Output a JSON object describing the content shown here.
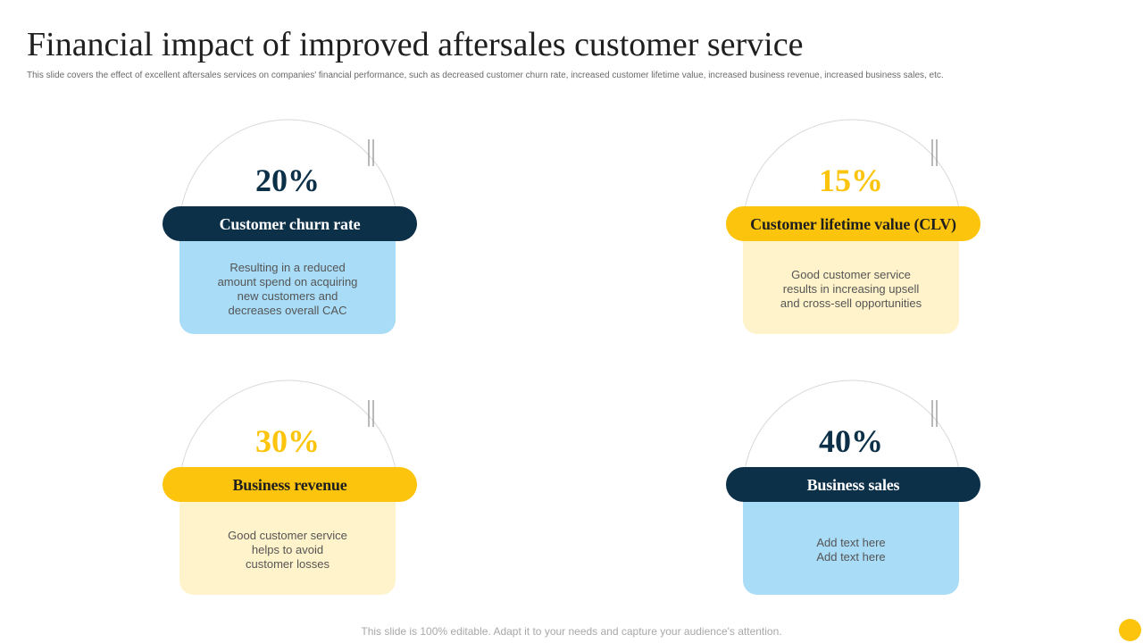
{
  "slide": {
    "title": "Financial impact of improved aftersales customer service",
    "subtitle": "This slide covers the effect of excellent aftersales services on companies' financial performance, such as decreased customer churn rate, increased customer lifetime value, increased business revenue, increased business sales, etc.",
    "footer": "This slide is 100% editable. Adapt it to your needs and capture your audience's attention."
  },
  "colors": {
    "navy": "#0d3049",
    "yellow": "#fcc40c",
    "light_blue": "#a8dcf7",
    "light_yellow": "#fff3cb",
    "arc_gray": "#d9d9d9",
    "mark_gray": "#8a8a8a"
  },
  "cards": [
    {
      "percent": "20%",
      "label": "Customer  churn rate",
      "description": "Resulting in a reduced\namount spend on acquiring\nnew customers and\ndecreases overall  CAC"
    },
    {
      "percent": "15%",
      "label": "Customer lifetime value (CLV)",
      "description": "Good customer service\nresults in increasing upsell\nand cross-sell opportunities"
    },
    {
      "percent": "30%",
      "label": "Business revenue",
      "description": "Good customer service\nhelps to avoid\ncustomer losses"
    },
    {
      "percent": "40%",
      "label": "Business sales",
      "description": "Add text here\nAdd text here"
    }
  ]
}
